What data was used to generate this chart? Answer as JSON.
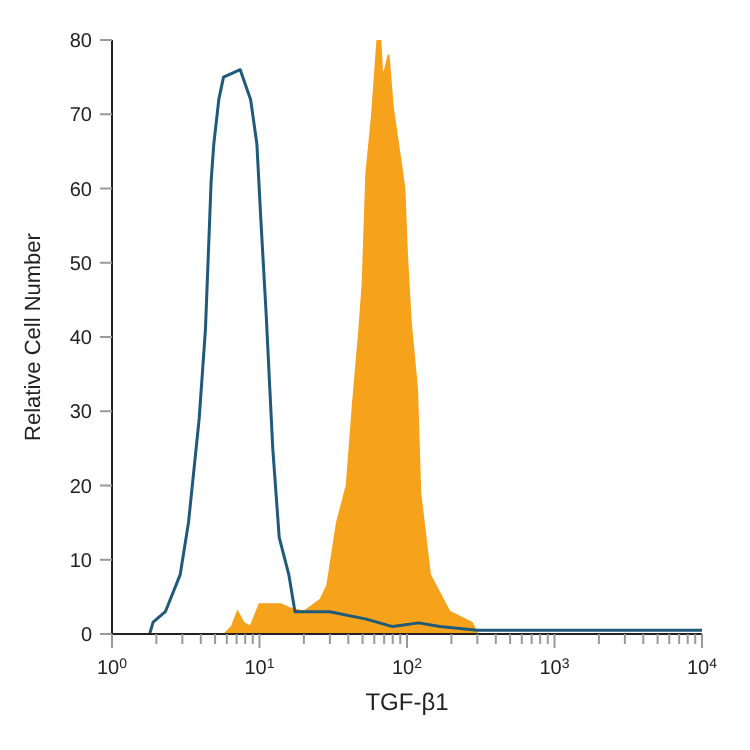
{
  "chart_data": {
    "type": "line",
    "xlabel": "TGF-β1",
    "ylabel": "Relative Cell Number",
    "log": "x",
    "xlim": [
      1,
      10000
    ],
    "ylim": [
      0,
      80
    ],
    "xticks": [
      {
        "value": 1,
        "label": "10$^{0}$"
      },
      {
        "value": 2,
        "label": null
      },
      {
        "value": 3,
        "label": null
      },
      {
        "value": 4,
        "label": null
      },
      {
        "value": 5,
        "label": null
      },
      {
        "value": 6,
        "label": null
      },
      {
        "value": 7,
        "label": null
      },
      {
        "value": 8,
        "label": null
      },
      {
        "value": 9,
        "label": null
      },
      {
        "value": 10,
        "label": "10$^{1}$"
      },
      {
        "value": 20,
        "label": null
      },
      {
        "value": 30,
        "label": null
      },
      {
        "value": 40,
        "label": null
      },
      {
        "value": 50,
        "label": null
      },
      {
        "value": 60,
        "label": null
      },
      {
        "value": 70,
        "label": null
      },
      {
        "value": 80,
        "label": null
      },
      {
        "value": 90,
        "label": null
      },
      {
        "value": 100,
        "label": "10$^{2}$"
      },
      {
        "value": 200,
        "label": null
      },
      {
        "value": 300,
        "label": null
      },
      {
        "value": 400,
        "label": null
      },
      {
        "value": 500,
        "label": null
      },
      {
        "value": 600,
        "label": null
      },
      {
        "value": 700,
        "label": null
      },
      {
        "value": 800,
        "label": null
      },
      {
        "value": 900,
        "label": null
      },
      {
        "value": 1000,
        "label": "10$^{3}$"
      },
      {
        "value": 2000,
        "label": null
      },
      {
        "value": 3000,
        "label": null
      },
      {
        "value": 4000,
        "label": null
      },
      {
        "value": 5000,
        "label": null
      },
      {
        "value": 6000,
        "label": null
      },
      {
        "value": 7000,
        "label": null
      },
      {
        "value": 8000,
        "label": null
      },
      {
        "value": 9000,
        "label": null
      },
      {
        "value": 10000,
        "label": "10$^{4}$"
      }
    ],
    "yticks": [
      0,
      10,
      20,
      30,
      40,
      50,
      60,
      70,
      80
    ],
    "marker": "none",
    "series": [
      {
        "type": "area",
        "color": "#f7a21b",
        "x": [
          5.8,
          6.5,
          7.1,
          7.8,
          8.7,
          10,
          14,
          15.8,
          20,
          25.8,
          28.8,
          33.5,
          39,
          43,
          47.5,
          50,
          53,
          58,
          63,
          66,
          68,
          71,
          75,
          80,
          87,
          96,
          100,
          106,
          117,
          123,
          143,
          194,
          275,
          300
        ],
        "values": [
          0,
          1,
          3,
          1.5,
          1,
          4,
          4,
          3.5,
          3,
          4.6,
          6.5,
          15,
          20,
          31,
          41,
          47,
          62,
          70,
          80,
          80,
          75,
          76,
          78,
          71,
          66,
          60,
          51,
          42,
          33,
          19,
          8,
          3,
          1.5,
          0
        ]
      },
      {
        "color": "#1f5a7a",
        "x": [
          1.8,
          1.9,
          2.3,
          2.9,
          3.3,
          3.9,
          4.3,
          4.7,
          4.9,
          5.3,
          5.7,
          7.4,
          8.7,
          9.6,
          10.2,
          11.1,
          12.3,
          13.6,
          15.8,
          17.4,
          30,
          53,
          80,
          120,
          167,
          300,
          1000,
          10000
        ],
        "values": [
          0,
          1.6,
          3,
          8,
          15,
          29,
          41,
          61,
          66,
          72,
          75,
          76,
          72,
          66,
          56,
          43,
          25,
          13,
          8,
          3,
          3,
          2,
          1,
          1.5,
          1,
          0.5,
          0.5,
          0.5
        ]
      }
    ]
  }
}
